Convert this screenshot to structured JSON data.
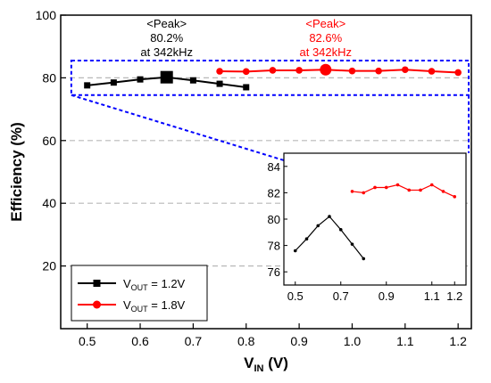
{
  "chart_data": {
    "type": "line",
    "xlabel": {
      "main": "V",
      "sub": "IN",
      "unit": " (V)"
    },
    "ylabel": "Efficiency (%)",
    "xlim": [
      0.45,
      1.225
    ],
    "ylim": [
      0,
      100
    ],
    "xticks": [
      "0.5",
      "0.6",
      "0.7",
      "0.8",
      "0.9",
      "1.0",
      "1.1",
      "1.2"
    ],
    "yticks": [
      "20",
      "40",
      "60",
      "80",
      "100"
    ],
    "grid": {
      "horizontal_dashed": [
        20,
        40,
        60,
        80
      ]
    },
    "series": [
      {
        "label_main": "V",
        "label_sub": "OUT",
        "label_rest": " = 1.2V",
        "color": "#000000",
        "marker": "square",
        "x": [
          0.5,
          0.55,
          0.6,
          0.65,
          0.7,
          0.75,
          0.8
        ],
        "y": [
          77.6,
          78.5,
          79.5,
          80.2,
          79.2,
          78.1,
          77.0
        ],
        "peak_index": 3
      },
      {
        "label_main": "V",
        "label_sub": "OUT",
        "label_rest": " = 1.8V",
        "color": "#ff0000",
        "marker": "circle",
        "x": [
          0.75,
          0.8,
          0.85,
          0.9,
          0.95,
          1.0,
          1.05,
          1.1,
          1.15,
          1.2
        ],
        "y": [
          82.1,
          82.0,
          82.4,
          82.4,
          82.6,
          82.2,
          82.2,
          82.6,
          82.1,
          81.7
        ],
        "peak_index": 4
      }
    ],
    "annotations": [
      {
        "lines": [
          "<Peak>",
          "80.2%",
          "at 342kHz"
        ],
        "color": "#000000",
        "x": 0.65
      },
      {
        "lines": [
          "<Peak>",
          "82.6%",
          "at 342kHz"
        ],
        "color": "#ff0000",
        "x": 0.95
      }
    ],
    "zoom_box": {
      "x": [
        0.47,
        1.22
      ],
      "y": [
        74.5,
        85.5
      ],
      "color": "#0000ff"
    },
    "inset": {
      "xlim": [
        0.45,
        1.25
      ],
      "ylim": [
        75,
        85
      ],
      "xticks": [
        "0.5",
        "0.7",
        "0.9",
        "1.1",
        "1.2"
      ],
      "xtick_values": [
        0.5,
        0.7,
        0.9,
        1.1,
        1.2
      ],
      "yticks": [
        "76",
        "78",
        "80",
        "82",
        "84"
      ]
    },
    "legend_placement": "bottom-left"
  }
}
